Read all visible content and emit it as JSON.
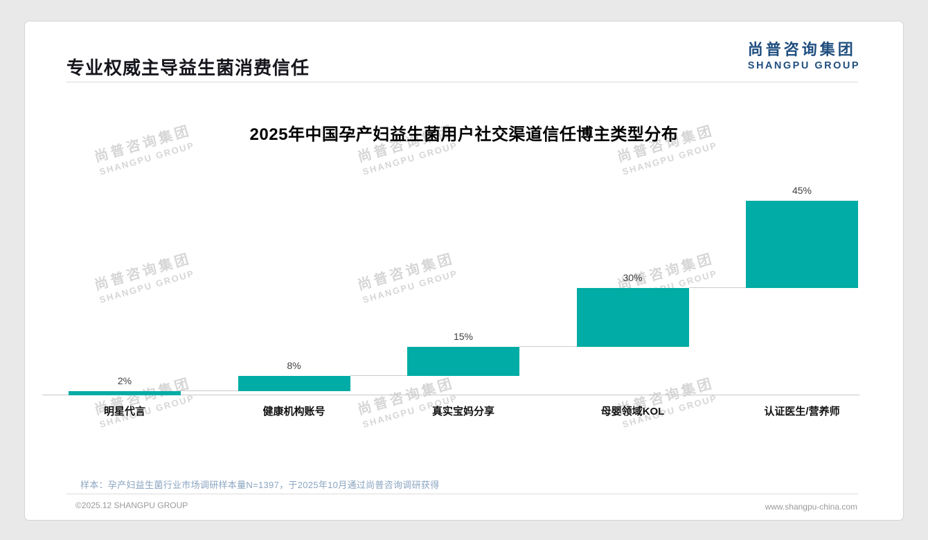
{
  "header": {
    "title": "专业权威主导益生菌消费信任",
    "logo_cn": "尚普咨询集团",
    "logo_en": "SHANGPU GROUP",
    "logo_color": "#1f4e7f"
  },
  "watermark": {
    "line1": "尚普咨询集团",
    "line2": "SHANGPU GROUP"
  },
  "chart_data": {
    "type": "bar",
    "style": "waterfall",
    "title": "2025年中国孕产妇益生菌用户社交渠道信任博主类型分布",
    "categories": [
      "明星代言",
      "健康机构账号",
      "真实宝妈分享",
      "母婴领域KOL",
      "认证医生/营养师"
    ],
    "values": [
      2,
      8,
      15,
      30,
      45
    ],
    "labels": [
      "2%",
      "8%",
      "15%",
      "30%",
      "45%"
    ],
    "unit": "%",
    "ylim": [
      0,
      100
    ],
    "bar_color": "#00ACA5",
    "grid": false,
    "legend": "none",
    "layout_hint": "bars stack cumulatively left to right (2, 10, 25, 55, 100), summing to 100%; thin gray connector lines join the top of each bar to the base of the next; single gray baseline at 0"
  },
  "note": "样本：孕产妇益生菌行业市场调研样本量N=1397，于2025年10月通过尚普咨询调研获得",
  "footer": {
    "left": "©2025.12 SHANGPU GROUP",
    "right": "www.shangpu-china.com"
  },
  "colors": {
    "accent_teal": "#00ACA5",
    "logo_blue": "#1f4e7f",
    "note_blue": "#8ba5c1",
    "page_background": "#e9e9e9",
    "card_background": "#ffffff"
  }
}
